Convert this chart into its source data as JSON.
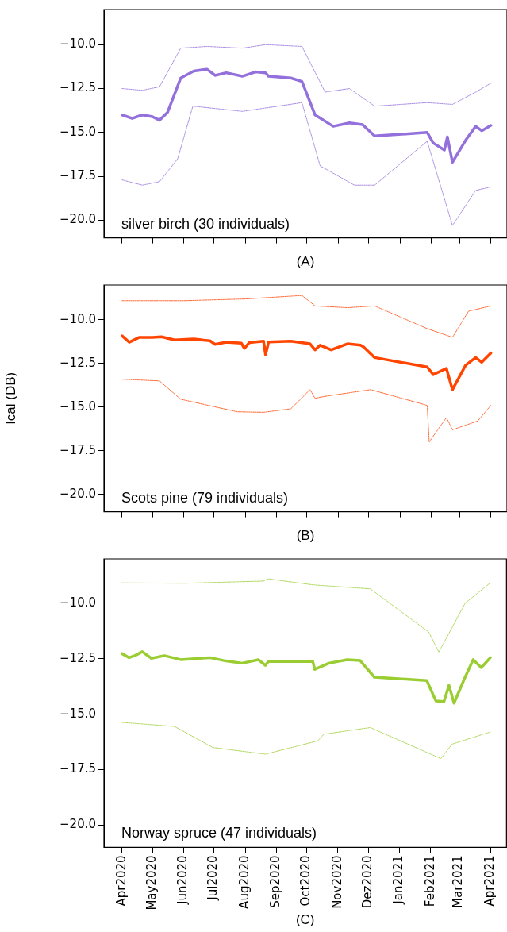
{
  "chart_data": [
    {
      "type": "line",
      "xlabel": "(A)",
      "annotations": [
        "silver birch (30 individuals)"
      ],
      "xlim": [
        "2020-03-14",
        "2021-04-17"
      ],
      "ylim": [
        -21,
        -8
      ],
      "tick_labels": "y",
      "xticks": [
        {
          "value": "2020-04-01",
          "label": null
        },
        {
          "value": "2020-05-01",
          "label": null
        },
        {
          "value": "2020-06-01",
          "label": null
        },
        {
          "value": "2020-07-01",
          "label": null
        },
        {
          "value": "2020-08-01",
          "label": null
        },
        {
          "value": "2020-09-01",
          "label": null
        },
        {
          "value": "2020-10-01",
          "label": null
        },
        {
          "value": "2020-11-01",
          "label": null
        },
        {
          "value": "2020-12-01",
          "label": null
        },
        {
          "value": "2021-01-01",
          "label": null
        },
        {
          "value": "2021-02-01",
          "label": null
        },
        {
          "value": "2021-03-01",
          "label": null
        },
        {
          "value": "2021-04-01",
          "label": null
        }
      ],
      "yticks": [
        {
          "value": -20,
          "label": "−20.0"
        },
        {
          "value": -17.5,
          "label": "−17.5"
        },
        {
          "value": -15,
          "label": "−15.0"
        },
        {
          "value": -12.5,
          "label": "−12.5"
        },
        {
          "value": -10,
          "label": "−10.0"
        }
      ],
      "series": [
        {
          "color": "#9370db",
          "line_style": "dashed",
          "x": [
            "2020-04-01",
            "2020-04-21",
            "2020-05-08",
            "2020-05-29",
            "2020-06-24",
            "2020-07-29",
            "2020-08-21",
            "2020-09-26",
            "2020-10-19",
            "2020-11-12",
            "2020-12-07",
            "2021-01-28",
            "2021-02-22",
            "2021-03-17",
            "2021-04-01"
          ],
          "values": [
            -12.5,
            -12.6,
            -12.4,
            -10.2,
            -10.1,
            -10.2,
            -10.0,
            -10.1,
            -12.7,
            -12.5,
            -13.5,
            -13.3,
            -13.4,
            -12.7,
            -12.2
          ]
        },
        {
          "color": "#9370db",
          "line_style": "dashed",
          "x": [
            "2020-04-01",
            "2020-04-21",
            "2020-05-08",
            "2020-05-26",
            "2020-06-10",
            "2020-07-29",
            "2020-09-26",
            "2020-10-14",
            "2020-11-17",
            "2020-12-07",
            "2021-01-28",
            "2021-02-22",
            "2021-03-17",
            "2021-04-01"
          ],
          "values": [
            -17.7,
            -18.0,
            -17.8,
            -16.5,
            -13.5,
            -13.8,
            -13.3,
            -16.9,
            -18.0,
            -18.0,
            -15.5,
            -20.3,
            -18.3,
            -18.1
          ]
        },
        {
          "color": "#9370db",
          "line_style": "solid",
          "x": [
            "2020-04-01",
            "2020-04-11",
            "2020-04-21",
            "2020-05-01",
            "2020-05-08",
            "2020-05-16",
            "2020-05-29",
            "2020-06-11",
            "2020-06-24",
            "2020-07-02",
            "2020-07-13",
            "2020-07-29",
            "2020-08-11",
            "2020-08-21",
            "2020-08-24",
            "2020-09-15",
            "2020-09-26",
            "2020-10-09",
            "2020-10-27",
            "2020-11-12",
            "2020-11-25",
            "2020-12-07",
            "2021-01-28",
            "2021-02-03",
            "2021-02-14",
            "2021-02-17",
            "2021-02-22",
            "2021-03-07",
            "2021-03-17",
            "2021-03-23",
            "2021-04-01"
          ],
          "values": [
            -14.0,
            -14.2,
            -14.0,
            -14.1,
            -14.3,
            -13.85,
            -11.9,
            -11.5,
            -11.4,
            -11.75,
            -11.6,
            -11.8,
            -11.55,
            -11.6,
            -11.8,
            -11.9,
            -12.1,
            -14.0,
            -14.65,
            -14.45,
            -14.55,
            -15.2,
            -15.0,
            -15.6,
            -16.0,
            -15.25,
            -16.7,
            -15.45,
            -14.65,
            -14.9,
            -14.6
          ]
        }
      ]
    },
    {
      "type": "line",
      "xlabel": "(B)",
      "ylabel": "Ical (DB)",
      "annotations": [
        "Scots pine (79 individuals)"
      ],
      "xlim": [
        "2020-03-14",
        "2021-04-17"
      ],
      "ylim": [
        -21,
        -8
      ],
      "tick_labels": "y",
      "xticks": [
        {
          "value": "2020-04-01",
          "label": null
        },
        {
          "value": "2020-05-01",
          "label": null
        },
        {
          "value": "2020-06-01",
          "label": null
        },
        {
          "value": "2020-07-01",
          "label": null
        },
        {
          "value": "2020-08-01",
          "label": null
        },
        {
          "value": "2020-09-01",
          "label": null
        },
        {
          "value": "2020-10-01",
          "label": null
        },
        {
          "value": "2020-11-01",
          "label": null
        },
        {
          "value": "2020-12-01",
          "label": null
        },
        {
          "value": "2021-01-01",
          "label": null
        },
        {
          "value": "2021-02-01",
          "label": null
        },
        {
          "value": "2021-03-01",
          "label": null
        },
        {
          "value": "2021-04-01",
          "label": null
        }
      ],
      "yticks": [
        {
          "value": -20,
          "label": "−20.0"
        },
        {
          "value": -17.5,
          "label": "−17.5"
        },
        {
          "value": -15,
          "label": "−15.0"
        },
        {
          "value": -12.5,
          "label": "−12.5"
        },
        {
          "value": -10,
          "label": "−10.0"
        }
      ],
      "series": [
        {
          "color": "#ff4500",
          "line_style": "dashed",
          "x": [
            "2020-04-01",
            "2020-06-01",
            "2020-08-01",
            "2020-09-26",
            "2020-10-09",
            "2020-11-10",
            "2020-12-07",
            "2021-01-28",
            "2021-02-22",
            "2021-03-10",
            "2021-04-01"
          ],
          "values": [
            -8.9,
            -8.9,
            -8.8,
            -8.6,
            -9.2,
            -9.3,
            -9.2,
            -10.5,
            -11.0,
            -9.5,
            -9.2
          ]
        },
        {
          "color": "#ff4500",
          "line_style": "dashed",
          "x": [
            "2020-04-01",
            "2020-05-08",
            "2020-05-29",
            "2020-07-24",
            "2020-08-19",
            "2020-09-15",
            "2020-10-04",
            "2020-10-09",
            "2020-10-17",
            "2020-12-03",
            "2021-01-28",
            "2021-01-30",
            "2021-02-16",
            "2021-02-22",
            "2021-03-19",
            "2021-04-01"
          ],
          "values": [
            -13.4,
            -13.5,
            -14.55,
            -15.27,
            -15.3,
            -15.1,
            -14.0,
            -14.5,
            -14.4,
            -14.0,
            -14.9,
            -17.0,
            -15.6,
            -16.3,
            -15.8,
            -14.9
          ]
        },
        {
          "color": "#ff4500",
          "line_style": "solid",
          "x": [
            "2020-04-01",
            "2020-04-08",
            "2020-04-18",
            "2020-05-01",
            "2020-05-10",
            "2020-05-23",
            "2020-06-11",
            "2020-06-27",
            "2020-07-02",
            "2020-07-13",
            "2020-07-28",
            "2020-07-31",
            "2020-08-05",
            "2020-08-19",
            "2020-08-21",
            "2020-08-24",
            "2020-09-15",
            "2020-10-04",
            "2020-10-09",
            "2020-10-14",
            "2020-10-25",
            "2020-11-10",
            "2020-11-23",
            "2020-11-26",
            "2020-12-07",
            "2021-01-28",
            "2021-02-03",
            "2021-02-16",
            "2021-02-22",
            "2021-03-07",
            "2021-03-17",
            "2021-03-23",
            "2021-04-01"
          ],
          "values": [
            -10.92,
            -11.28,
            -11.0,
            -11.0,
            -10.97,
            -11.15,
            -11.1,
            -11.2,
            -11.4,
            -11.28,
            -11.33,
            -11.63,
            -11.3,
            -11.22,
            -12.0,
            -11.27,
            -11.22,
            -11.37,
            -11.72,
            -11.45,
            -11.72,
            -11.37,
            -11.45,
            -11.55,
            -12.16,
            -12.7,
            -13.14,
            -12.78,
            -14.0,
            -12.6,
            -12.16,
            -12.43,
            -11.9
          ]
        }
      ]
    },
    {
      "type": "line",
      "xlabel": "(C)",
      "annotations": [
        "Norway spruce (47 individuals)"
      ],
      "xlim": [
        "2020-03-14",
        "2021-04-17"
      ],
      "ylim": [
        -21,
        -8
      ],
      "xticks": [
        {
          "value": "2020-04-01",
          "label": "Apr2020"
        },
        {
          "value": "2020-05-01",
          "label": "May2020"
        },
        {
          "value": "2020-06-01",
          "label": "Jun2020"
        },
        {
          "value": "2020-07-01",
          "label": "Jul2020"
        },
        {
          "value": "2020-08-01",
          "label": "Aug2020"
        },
        {
          "value": "2020-09-01",
          "label": "Sep2020"
        },
        {
          "value": "2020-10-01",
          "label": "Oct2020"
        },
        {
          "value": "2020-11-01",
          "label": "Nov2020"
        },
        {
          "value": "2020-12-01",
          "label": "Dez2020"
        },
        {
          "value": "2021-01-01",
          "label": "Jan2021"
        },
        {
          "value": "2021-02-01",
          "label": "Feb2021"
        },
        {
          "value": "2021-03-01",
          "label": "Mar2021"
        },
        {
          "value": "2021-04-01",
          "label": "Apr2021"
        }
      ],
      "yticks": [
        {
          "value": -20,
          "label": "−20.0"
        },
        {
          "value": -17.5,
          "label": "−17.5"
        },
        {
          "value": -15,
          "label": "−15.0"
        },
        {
          "value": -12.5,
          "label": "−12.5"
        },
        {
          "value": -10,
          "label": "−10.0"
        }
      ],
      "series": [
        {
          "color": "#9acd32",
          "line_style": "dashed",
          "x": [
            "2020-04-01",
            "2020-06-01",
            "2020-08-19",
            "2020-08-24",
            "2020-10-07",
            "2020-12-03",
            "2021-01-30",
            "2021-02-09",
            "2021-03-07",
            "2021-04-01"
          ],
          "values": [
            -9.08,
            -9.1,
            -9.0,
            -8.9,
            -9.17,
            -9.35,
            -11.3,
            -12.2,
            -10.0,
            -9.08
          ]
        },
        {
          "color": "#9acd32",
          "line_style": "dashed",
          "x": [
            "2020-04-01",
            "2020-05-23",
            "2020-06-30",
            "2020-08-21",
            "2020-10-12",
            "2020-10-18",
            "2020-12-03",
            "2021-02-11",
            "2021-02-22",
            "2021-04-01"
          ],
          "values": [
            -15.37,
            -15.55,
            -16.5,
            -16.8,
            -16.2,
            -15.9,
            -15.6,
            -17.0,
            -16.35,
            -15.8
          ]
        },
        {
          "color": "#9acd32",
          "line_style": "solid",
          "x": [
            "2020-04-01",
            "2020-04-08",
            "2020-04-14",
            "2020-04-21",
            "2020-04-30",
            "2020-05-13",
            "2020-05-29",
            "2020-06-27",
            "2020-07-13",
            "2020-07-29",
            "2020-08-14",
            "2020-08-21",
            "2020-08-24",
            "2020-09-15",
            "2020-10-07",
            "2020-10-09",
            "2020-10-23",
            "2020-11-10",
            "2020-11-23",
            "2020-11-27",
            "2020-12-07",
            "2021-01-28",
            "2021-02-06",
            "2021-02-14",
            "2021-02-19",
            "2021-02-24",
            "2021-03-07",
            "2021-03-15",
            "2021-03-23",
            "2021-04-01"
          ],
          "values": [
            -12.27,
            -12.45,
            -12.35,
            -12.18,
            -12.48,
            -12.36,
            -12.54,
            -12.45,
            -12.6,
            -12.7,
            -12.54,
            -12.8,
            -12.62,
            -12.62,
            -12.62,
            -12.98,
            -12.7,
            -12.54,
            -12.58,
            -12.8,
            -13.33,
            -13.48,
            -14.4,
            -14.43,
            -13.7,
            -14.5,
            -13.33,
            -12.54,
            -12.9,
            -12.45
          ]
        }
      ]
    }
  ]
}
